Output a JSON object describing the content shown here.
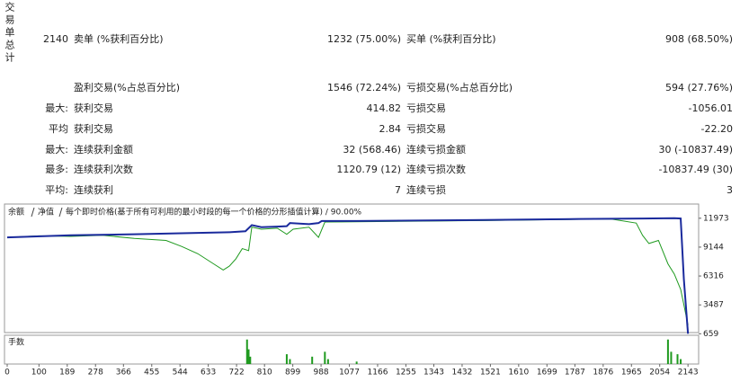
{
  "stats": {
    "side_label": "交易单总计",
    "rows": [
      {
        "label": "2140",
        "left": "卖单 (%获利百分比)",
        "left_value": "1232 (75.00%)",
        "right": "买单 (%获利百分比)",
        "right_value": "908 (68.50%)"
      },
      {
        "left": "盈利交易(%占总百分比)",
        "left_value": "1546 (72.24%)",
        "right": "亏损交易(%占总百分比)",
        "right_value": "594 (27.76%)"
      },
      {
        "label": "最大:",
        "left": "获利交易",
        "left_value": "414.82",
        "right": "亏损交易",
        "right_value": "-1056.01"
      },
      {
        "label": "平均",
        "left": "获利交易",
        "left_value": "2.84",
        "right": "亏损交易",
        "right_value": "-22.20"
      },
      {
        "label": "最大:",
        "left": "连续获利金额",
        "left_value": "32 (568.46)",
        "right": "连续亏损金额",
        "right_value": "30 (-10837.49)"
      },
      {
        "label": "最多:",
        "left": "连续获利次数",
        "left_value": "1120.79 (12)",
        "right": "连续亏损次数",
        "right_value": "-10837.49 (30)"
      },
      {
        "label": "平均:",
        "left": "连续获利",
        "left_value": "7",
        "right": "连续亏损",
        "right_value": "3"
      }
    ]
  },
  "chart_data": {
    "type": "line",
    "subtitle": "每个即时价格(基于所有可利用的最小时段的每一个价格的分形插值计算) / 90.00%",
    "series": [
      {
        "name": "余额",
        "color": "#1a2a9c",
        "x": [
          0,
          200,
          400,
          700,
          750,
          770,
          800,
          850,
          880,
          890,
          950,
          980,
          990,
          1100,
          1500,
          1800,
          2000,
          2100,
          2120,
          2130,
          2143
        ],
        "values": [
          10100,
          10300,
          10400,
          10600,
          10700,
          11300,
          11100,
          11150,
          11200,
          11500,
          11400,
          11500,
          11700,
          11700,
          11800,
          11900,
          11950,
          11973,
          11950,
          6000,
          659
        ]
      },
      {
        "name": "净值",
        "color": "#1f9a1f",
        "x": [
          0,
          100,
          200,
          300,
          400,
          500,
          550,
          600,
          650,
          680,
          700,
          720,
          740,
          760,
          770,
          800,
          850,
          880,
          900,
          950,
          980,
          1000,
          1500,
          1900,
          1980,
          2000,
          2020,
          2050,
          2080,
          2100,
          2120,
          2130,
          2143
        ],
        "values": [
          10100,
          10250,
          10200,
          10300,
          10000,
          9800,
          9200,
          8500,
          7500,
          6900,
          7300,
          8000,
          9000,
          8800,
          11100,
          10900,
          11000,
          10400,
          10900,
          11100,
          10100,
          11600,
          11750,
          11900,
          11500,
          10300,
          9500,
          9800,
          7500,
          6500,
          5000,
          3500,
          1500
        ]
      }
    ],
    "xlim": [
      0,
      2185
    ],
    "xticks": [
      0,
      100,
      189,
      278,
      366,
      455,
      544,
      633,
      722,
      810,
      899,
      988,
      1077,
      1166,
      1255,
      1343,
      1432,
      1521,
      1610,
      1699,
      1787,
      1876,
      1965,
      2054,
      2143
    ],
    "ylim": [
      600,
      13100
    ],
    "yticks": [
      659,
      3487,
      6316,
      9144,
      11973
    ],
    "volume": {
      "name": "手数",
      "color": "#1f9a1f",
      "x": [
        755,
        760,
        765,
        880,
        890,
        960,
        1000,
        1010,
        1100,
        2080,
        2090,
        2110,
        2120
      ],
      "values": [
        10,
        6,
        3,
        4,
        2,
        3,
        5,
        2,
        1,
        10,
        5,
        4,
        2
      ]
    }
  }
}
